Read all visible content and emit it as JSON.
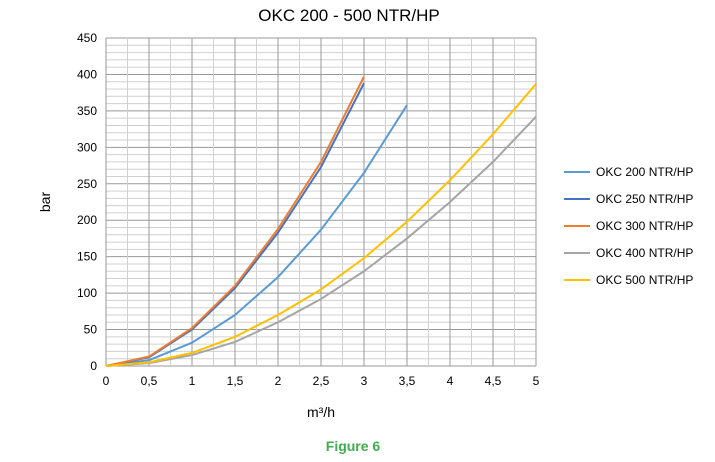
{
  "chart_data": {
    "type": "line",
    "title": "OKC 200 - 500 NTR/HP",
    "xlabel": "m³/h",
    "ylabel": "bar",
    "xlim": [
      0,
      5
    ],
    "ylim": [
      0,
      450
    ],
    "x_ticks": [
      "0",
      "0,5",
      "1",
      "1,5",
      "2",
      "2,5",
      "3",
      "3,5",
      "4",
      "4,5",
      "5"
    ],
    "y_ticks": [
      "0",
      "50",
      "100",
      "150",
      "200",
      "250",
      "300",
      "350",
      "400",
      "450"
    ],
    "grid": true,
    "legend_position": "right",
    "series": [
      {
        "name": "OKC 200 NTR/HP",
        "color": "#5B9BD5",
        "x": [
          0,
          0.5,
          1,
          1.5,
          2,
          2.5,
          3,
          3.5
        ],
        "y": [
          0,
          8,
          32,
          70,
          122,
          187,
          265,
          358
        ]
      },
      {
        "name": "OKC 250 NTR/HP",
        "color": "#4472C4",
        "x": [
          0,
          0.5,
          1,
          1.5,
          2,
          2.5,
          3
        ],
        "y": [
          0,
          12,
          50,
          107,
          183,
          273,
          388
        ]
      },
      {
        "name": "OKC 300 NTR/HP",
        "color": "#ED7D31",
        "x": [
          0,
          0.5,
          1,
          1.5,
          2,
          2.5,
          3
        ],
        "y": [
          0,
          13,
          52,
          110,
          188,
          280,
          397
        ]
      },
      {
        "name": "OKC 400 NTR/HP",
        "color": "#A5A5A5",
        "x": [
          0,
          0.5,
          1,
          1.5,
          2,
          2.5,
          3,
          3.5,
          4,
          4.5,
          5
        ],
        "y": [
          0,
          4,
          15,
          33,
          60,
          92,
          130,
          175,
          225,
          280,
          342
        ]
      },
      {
        "name": "OKC 500 NTR/HP",
        "color": "#FFC000",
        "x": [
          0,
          0.5,
          1,
          1.5,
          2,
          2.5,
          3,
          3.5,
          4,
          4.5,
          5
        ],
        "y": [
          0,
          5,
          18,
          40,
          70,
          105,
          148,
          198,
          255,
          318,
          387
        ]
      }
    ]
  },
  "caption": "Figure 6",
  "caption_color": "#3DAE4B"
}
